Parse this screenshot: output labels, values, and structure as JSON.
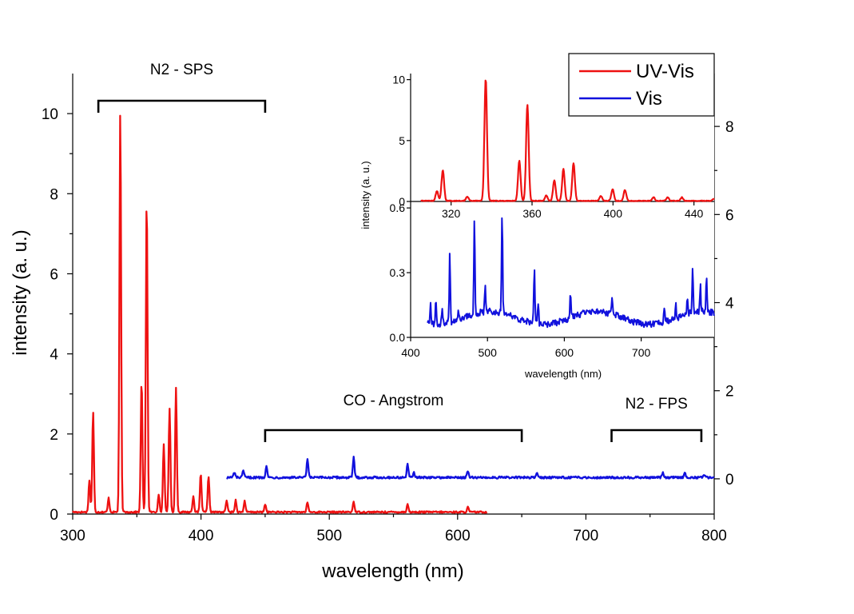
{
  "chart_data": {
    "type": "line",
    "main": {
      "xlabel": "wavelength (nm)",
      "ylabel": "intensity (a. u.)",
      "xlim": [
        300,
        800
      ],
      "ylim_left": [
        0,
        11
      ],
      "ylim_right": [
        -0.8,
        9.2
      ],
      "x_ticks": [
        300,
        400,
        500,
        600,
        700,
        800
      ],
      "y_ticks_left": [
        0,
        2,
        4,
        6,
        8,
        10
      ],
      "y_ticks_right": [
        0,
        2,
        4,
        6,
        8
      ],
      "series": [
        {
          "name": "UV-Vis",
          "color": "#ee1111",
          "axis": "left",
          "baseline": 0.05,
          "noise": 0.04,
          "x_range": [
            300,
            623
          ],
          "peaks": [
            {
              "x": 313,
              "h": 0.8
            },
            {
              "x": 315.9,
              "h": 2.5
            },
            {
              "x": 328,
              "h": 0.35
            },
            {
              "x": 337.1,
              "h": 10.0
            },
            {
              "x": 353.7,
              "h": 3.3
            },
            {
              "x": 357.7,
              "h": 7.9
            },
            {
              "x": 367,
              "h": 0.45
            },
            {
              "x": 371,
              "h": 1.7
            },
            {
              "x": 375.5,
              "h": 2.6
            },
            {
              "x": 380.5,
              "h": 3.1
            },
            {
              "x": 394,
              "h": 0.4
            },
            {
              "x": 399.8,
              "h": 0.95
            },
            {
              "x": 405.9,
              "h": 0.9
            },
            {
              "x": 420,
              "h": 0.3
            },
            {
              "x": 427,
              "h": 0.3
            },
            {
              "x": 434,
              "h": 0.28
            },
            {
              "x": 450,
              "h": 0.2
            },
            {
              "x": 483,
              "h": 0.25
            },
            {
              "x": 519,
              "h": 0.27
            },
            {
              "x": 561,
              "h": 0.2
            },
            {
              "x": 608,
              "h": 0.12
            }
          ]
        },
        {
          "name": "Vis",
          "color": "#1111dd",
          "axis": "right",
          "baseline": 0.03,
          "noise": 0.05,
          "x_range": [
            420,
            800
          ],
          "peaks": [
            {
              "x": 426,
              "h": 0.12
            },
            {
              "x": 433,
              "h": 0.15
            },
            {
              "x": 451,
              "h": 0.28
            },
            {
              "x": 483,
              "h": 0.42
            },
            {
              "x": 519,
              "h": 0.45
            },
            {
              "x": 561,
              "h": 0.3
            },
            {
              "x": 566,
              "h": 0.12
            },
            {
              "x": 608,
              "h": 0.14
            },
            {
              "x": 662,
              "h": 0.1
            },
            {
              "x": 760,
              "h": 0.1
            },
            {
              "x": 777,
              "h": 0.12
            },
            {
              "x": 792,
              "h": 0.08
            }
          ]
        }
      ]
    },
    "inset_top": {
      "ylabel": "intensity (a. u.)",
      "xlim": [
        300,
        450
      ],
      "ylim": [
        0,
        10.5
      ],
      "x_ticks": [
        320,
        360,
        400,
        440
      ],
      "y_ticks": [
        0,
        5,
        10
      ],
      "series_ref": "UV-Vis"
    },
    "inset_bottom": {
      "xlabel": "wavelength (nm)",
      "xlim": [
        400,
        795
      ],
      "ylim": [
        0,
        0.63
      ],
      "x_ticks": [
        400,
        500,
        600,
        700
      ],
      "y_ticks": [
        0.0,
        0.3,
        0.6
      ],
      "baseline": 0.09,
      "noise": 0.03,
      "x_range": [
        422,
        795
      ],
      "series_ref": "Vis",
      "peaks": [
        {
          "x": 426,
          "h": 0.09
        },
        {
          "x": 433,
          "h": 0.12
        },
        {
          "x": 441,
          "h": 0.06
        },
        {
          "x": 451,
          "h": 0.32
        },
        {
          "x": 462,
          "h": 0.05
        },
        {
          "x": 483,
          "h": 0.44
        },
        {
          "x": 497,
          "h": 0.12
        },
        {
          "x": 519,
          "h": 0.46
        },
        {
          "x": 561,
          "h": 0.26
        },
        {
          "x": 566,
          "h": 0.09
        },
        {
          "x": 608,
          "h": 0.12
        },
        {
          "x": 662,
          "h": 0.08
        },
        {
          "x": 730,
          "h": 0.07
        },
        {
          "x": 745,
          "h": 0.06
        },
        {
          "x": 760,
          "h": 0.08
        },
        {
          "x": 767,
          "h": 0.2
        },
        {
          "x": 777,
          "h": 0.12
        },
        {
          "x": 785,
          "h": 0.15
        }
      ]
    },
    "annotations": [
      {
        "label": "N2 - SPS",
        "x_start": 320,
        "x_end": 450
      },
      {
        "label": "CO - Angstrom",
        "x_start": 450,
        "x_end": 650
      },
      {
        "label": "N2 - FPS",
        "x_start": 720,
        "x_end": 790
      }
    ],
    "legend": {
      "position": "top-right",
      "entries": [
        {
          "label": "UV-Vis",
          "color": "#ee1111"
        },
        {
          "label": "Vis",
          "color": "#1111dd"
        }
      ]
    }
  }
}
